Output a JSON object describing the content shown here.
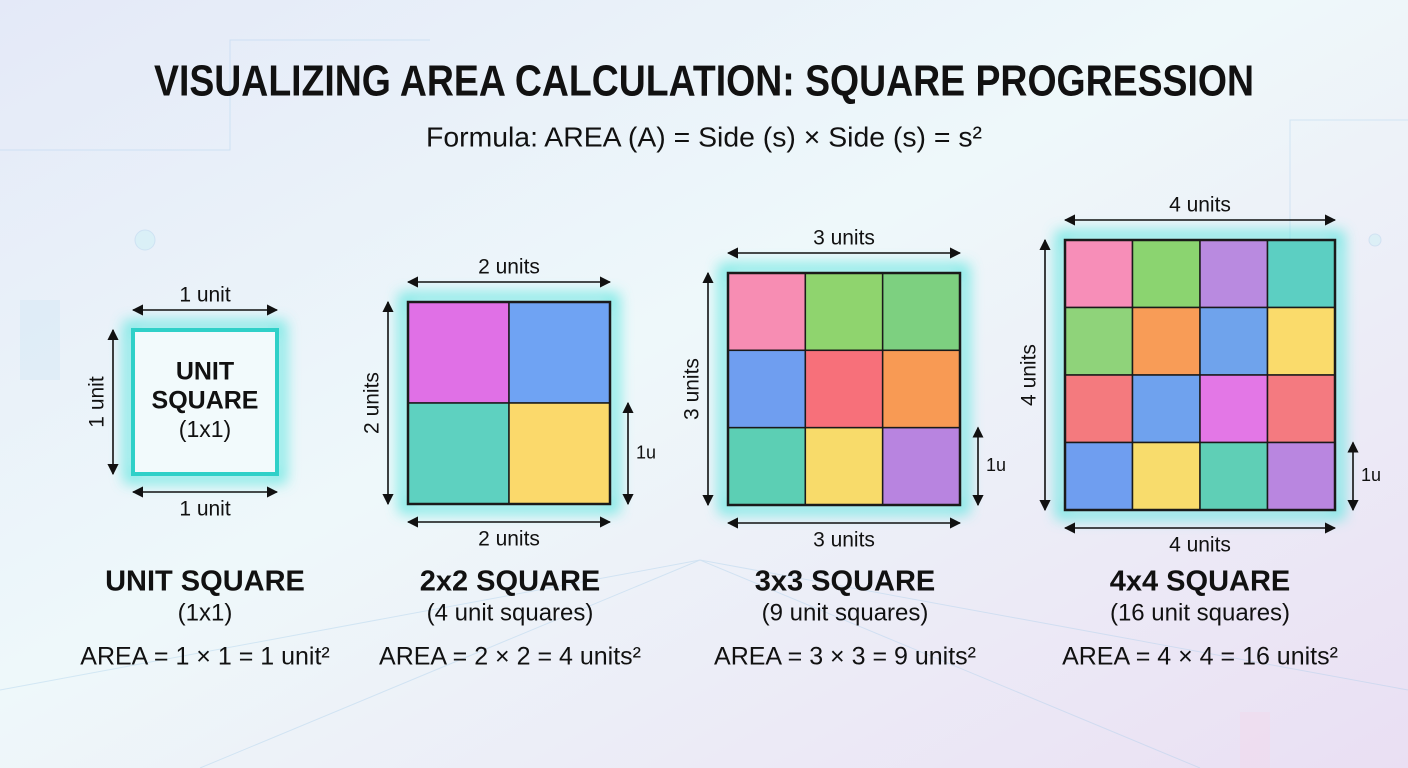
{
  "header": {
    "title": "VISUALIZING AREA CALCULATION: SQUARE PROGRESSION",
    "formula": "Formula: AREA (A) = Side (s) × Side (s) = s²"
  },
  "squares": [
    {
      "top_label": "1 unit",
      "bottom_label": "1 unit",
      "side_label": "1 unit",
      "inner_label": [
        "UNIT",
        "SQUARE",
        "(1x1)"
      ],
      "cells": [
        [
          "#f2fafc"
        ]
      ],
      "name": "UNIT SQUARE",
      "subtitle": "(1x1)",
      "area": "AREA = 1 × 1 = 1 unit²"
    },
    {
      "top_label": "2 units",
      "bottom_label": "2 units",
      "side_label": "2 units",
      "unit_marker": "1u",
      "cells": [
        [
          "#e070e6",
          "#6fa3f3"
        ],
        [
          "#5ed1c0",
          "#fbd96b"
        ]
      ],
      "name": "2x2 SQUARE",
      "subtitle": "(4 unit squares)",
      "area": "AREA = 2 × 2 = 4 units²"
    },
    {
      "top_label": "3 units",
      "bottom_label": "3 units",
      "side_label": "3 units",
      "unit_marker": "1u",
      "cells": [
        [
          "#f78db3",
          "#8fd46e",
          "#7dd080"
        ],
        [
          "#6f9ef0",
          "#f7707a",
          "#f89a54"
        ],
        [
          "#5ccfb4",
          "#f8db6a",
          "#b884e0"
        ]
      ],
      "name": "3x3 SQUARE",
      "subtitle": "(9 unit squares)",
      "area": "AREA = 3 × 3 = 9 units²"
    },
    {
      "top_label": "4 units",
      "bottom_label": "4 units",
      "side_label": "4 units",
      "unit_marker": "1u",
      "cells": [
        [
          "#f78eb8",
          "#8bd470",
          "#b98ae0",
          "#5ccfc2"
        ],
        [
          "#8fd37a",
          "#f89c57",
          "#6fa3ec",
          "#fadb6b"
        ],
        [
          "#f47a7e",
          "#6fa2ee",
          "#e377e6",
          "#f47a80"
        ],
        [
          "#6f9ef0",
          "#f8dc6c",
          "#5fcfb6",
          "#b986e0"
        ]
      ],
      "name": "4x4 SQUARE",
      "subtitle": "(16 unit squares)",
      "area": "AREA = 4 × 4 = 16 units²"
    }
  ]
}
